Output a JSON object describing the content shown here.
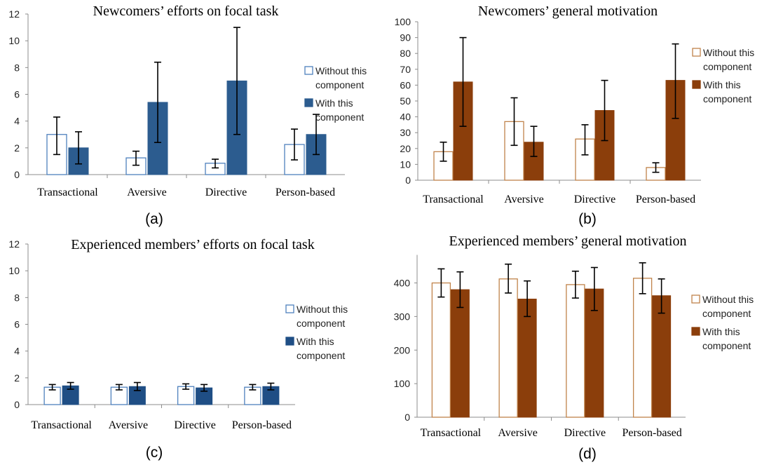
{
  "chart_data": [
    {
      "type": "bar",
      "title": "Newcomers’ efforts on focal task",
      "panel_label": "(a)",
      "categories": [
        "Transactional",
        "Aversive",
        "Directive",
        "Person-based"
      ],
      "ylim": [
        0,
        12
      ],
      "yticks": [
        0,
        2,
        4,
        6,
        8,
        10,
        12
      ],
      "legend_position": "right",
      "series": [
        {
          "name": "Without this component",
          "style": "outline",
          "color": "#4f81bd",
          "values": [
            3.0,
            1.25,
            0.85,
            2.25
          ],
          "err_low": [
            1.5,
            0.7,
            0.5,
            1.1
          ],
          "err_high": [
            4.3,
            1.75,
            1.15,
            3.4
          ]
        },
        {
          "name": "With this component",
          "style": "filled",
          "color": "#2c5c8f",
          "values": [
            2.0,
            5.4,
            7.0,
            3.0
          ],
          "err_low": [
            0.8,
            2.4,
            3.0,
            1.5
          ],
          "err_high": [
            3.2,
            8.4,
            11.0,
            4.5
          ]
        }
      ]
    },
    {
      "type": "bar",
      "title": "Newcomers’ general motivation",
      "panel_label": "(b)",
      "categories": [
        "Transactional",
        "Aversive",
        "Directive",
        "Person-based"
      ],
      "ylim": [
        0,
        100
      ],
      "yticks": [
        0,
        10,
        20,
        30,
        40,
        50,
        60,
        70,
        80,
        90,
        100
      ],
      "legend_position": "right",
      "series": [
        {
          "name": "Without this component",
          "style": "outline",
          "color": "#c0834a",
          "values": [
            18,
            37,
            26,
            8
          ],
          "err_low": [
            12,
            22,
            16,
            5
          ],
          "err_high": [
            24,
            52,
            35,
            11
          ]
        },
        {
          "name": "With this component",
          "style": "filled",
          "color": "#8b3e0b",
          "values": [
            62,
            24,
            44,
            63
          ],
          "err_low": [
            34,
            15,
            25,
            39
          ],
          "err_high": [
            90,
            34,
            63,
            86
          ]
        }
      ]
    },
    {
      "type": "bar",
      "title": "Experienced members’ efforts on focal task",
      "panel_label": "(c)",
      "categories": [
        "Transactional",
        "Aversive",
        "Directive",
        "Person-based"
      ],
      "ylim": [
        0,
        12
      ],
      "yticks": [
        0,
        2,
        4,
        6,
        8,
        10,
        12
      ],
      "legend_position": "right",
      "series": [
        {
          "name": "Without this component",
          "style": "outline",
          "color": "#4f81bd",
          "values": [
            1.3,
            1.3,
            1.35,
            1.3
          ],
          "err_low": [
            1.1,
            1.1,
            1.15,
            1.1
          ],
          "err_high": [
            1.5,
            1.5,
            1.55,
            1.5
          ]
        },
        {
          "name": "With this component",
          "style": "filled",
          "color": "#1f4e85",
          "values": [
            1.4,
            1.35,
            1.25,
            1.35
          ],
          "err_low": [
            1.15,
            1.05,
            1.0,
            1.1
          ],
          "err_high": [
            1.65,
            1.65,
            1.5,
            1.6
          ]
        }
      ]
    },
    {
      "type": "bar",
      "title": "Experienced members’ general motivation",
      "panel_label": "(d)",
      "categories": [
        "Transactional",
        "Aversive",
        "Directive",
        "Person-based"
      ],
      "ylim": [
        0,
        470
      ],
      "yticks": [
        0,
        100,
        200,
        300,
        400
      ],
      "legend_position": "right",
      "series": [
        {
          "name": "Without this component",
          "style": "outline",
          "color": "#c0834a",
          "values": [
            400,
            412,
            395,
            414
          ],
          "err_low": [
            358,
            370,
            355,
            368
          ],
          "err_high": [
            442,
            456,
            435,
            460
          ]
        },
        {
          "name": "With this component",
          "style": "filled",
          "color": "#8b3e0b",
          "values": [
            380,
            352,
            382,
            362
          ],
          "err_low": [
            327,
            300,
            318,
            310
          ],
          "err_high": [
            433,
            406,
            446,
            412
          ]
        }
      ]
    }
  ],
  "legend_lines": {
    "without": [
      "Without this",
      "component"
    ],
    "with": [
      "With this",
      "component"
    ]
  }
}
